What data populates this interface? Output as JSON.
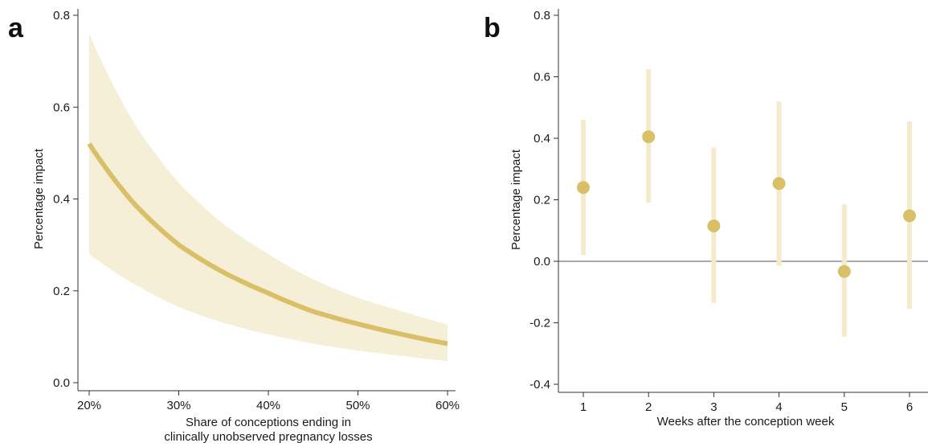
{
  "chart_data": [
    {
      "panel": "a",
      "type": "line",
      "xlabel_lines": [
        "Share of conceptions ending in",
        "clinically unobserved pregnancy losses"
      ],
      "ylabel": "Percentage impact",
      "xlim": [
        0.2,
        0.6
      ],
      "ylim": [
        0.0,
        0.8
      ],
      "xticks": [
        0.2,
        0.3,
        0.4,
        0.5,
        0.6
      ],
      "xtick_labels": [
        "20%",
        "30%",
        "40%",
        "50%",
        "60%"
      ],
      "yticks": [
        0.0,
        0.2,
        0.4,
        0.6,
        0.8
      ],
      "ytick_labels": [
        "0.0",
        "0.2",
        "0.4",
        "0.6",
        "0.8"
      ],
      "series": [
        {
          "x": [
            0.2,
            0.25,
            0.3,
            0.35,
            0.4,
            0.45,
            0.5,
            0.55,
            0.6
          ],
          "y": [
            0.52,
            0.39,
            0.3,
            0.24,
            0.195,
            0.155,
            0.128,
            0.105,
            0.085
          ],
          "ci_low": [
            0.28,
            0.215,
            0.165,
            0.13,
            0.105,
            0.085,
            0.07,
            0.058,
            0.047
          ],
          "ci_high": [
            0.76,
            0.565,
            0.435,
            0.345,
            0.28,
            0.225,
            0.185,
            0.155,
            0.127
          ]
        }
      ],
      "grid": false,
      "colors": {
        "line": "#d9c068",
        "band": "#f6efd7"
      }
    },
    {
      "panel": "b",
      "type": "scatter",
      "xlabel": "Weeks after the conception week",
      "ylabel": "Percentage impact",
      "xlim": [
        0.5,
        6.3
      ],
      "ylim": [
        -0.4,
        0.8
      ],
      "xticks": [
        1,
        2,
        3,
        4,
        5,
        6
      ],
      "xtick_labels": [
        "1",
        "2",
        "3",
        "4",
        "5",
        "6"
      ],
      "yticks": [
        -0.4,
        -0.2,
        0.0,
        0.2,
        0.4,
        0.6,
        0.8
      ],
      "ytick_labels": [
        "-0.4",
        "-0.2",
        "0.0",
        "0.2",
        "0.4",
        "0.6",
        "0.8"
      ],
      "reference_line_y": 0.0,
      "points": [
        {
          "x": 1,
          "y": 0.24,
          "ci": [
            0.02,
            0.46
          ]
        },
        {
          "x": 2,
          "y": 0.405,
          "ci": [
            0.19,
            0.625
          ]
        },
        {
          "x": 3,
          "y": 0.115,
          "ci": [
            -0.135,
            0.37
          ]
        },
        {
          "x": 4,
          "y": 0.253,
          "ci": [
            -0.015,
            0.52
          ]
        },
        {
          "x": 5,
          "y": -0.033,
          "ci": [
            -0.245,
            0.185
          ]
        },
        {
          "x": 6,
          "y": 0.148,
          "ci": [
            -0.155,
            0.455
          ]
        }
      ],
      "grid": false,
      "colors": {
        "point": "#d9c068",
        "ci": "#f4ebcc",
        "reference": "#555555"
      }
    }
  ]
}
